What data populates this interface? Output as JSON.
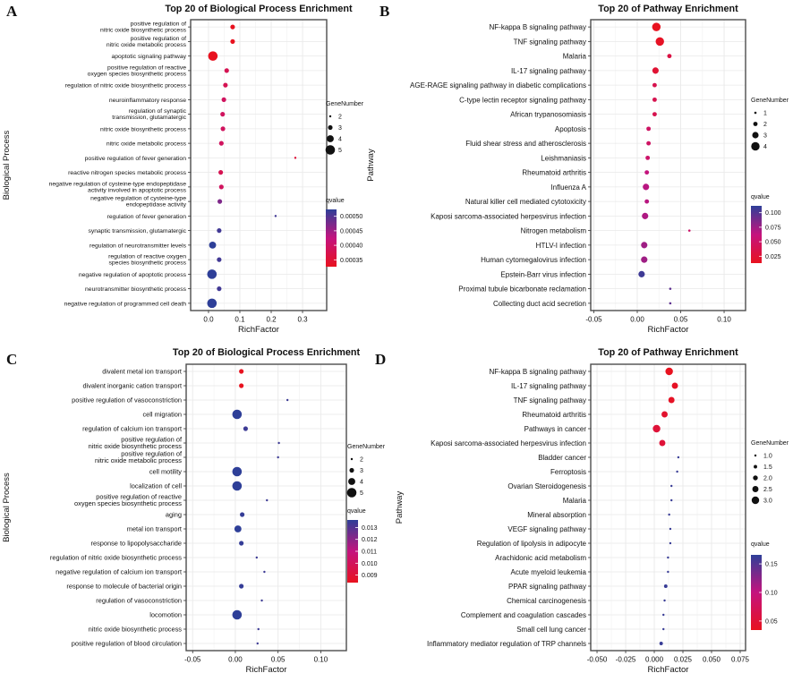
{
  "figure_colors": {
    "gradient_low_q": "#e8121f",
    "gradient_mid_q": "#c4137e",
    "gradient_high_q": "#2e3f98",
    "legend_dot": "#111111",
    "plot_border": "#4d4d4d",
    "grid_major": "#e9e9e9",
    "grid_minor": "#f4f4f4",
    "text": "#111111",
    "background": "#ffffff"
  },
  "chart_data": [
    {
      "type": "scatter",
      "panel_letter": "A",
      "title": "Top 20 of Biological Process Enrichment",
      "xlabel": "RichFactor",
      "ylabel": "Biological Process",
      "xlim": [
        -0.057,
        0.377
      ],
      "xtick_values": [
        0.0,
        0.1,
        0.2,
        0.3
      ],
      "xtick_labels": [
        "0.0",
        "0.1",
        "0.2",
        "0.3"
      ],
      "grid": true,
      "legend": {
        "size_title": "GeneNumber",
        "sizes": [
          2,
          3,
          4,
          5
        ],
        "size_labels": [
          "2",
          "3",
          "4",
          "5"
        ],
        "color_title": "qvalue",
        "color_ticks": [
          "0.00050",
          "0.00045",
          "0.00040",
          "0.00035"
        ],
        "color_domain": [
          0.00035,
          0.0005
        ]
      },
      "points": [
        {
          "label": [
            "positive regulation of",
            "nitric oxide biosynthetic process"
          ],
          "rich_factor": 0.077,
          "gene_number": 3,
          "qvalue": 0.00035
        },
        {
          "label": [
            "positive regulation of",
            "nitric oxide metabolic process"
          ],
          "rich_factor": 0.077,
          "gene_number": 3,
          "qvalue": 0.00035
        },
        {
          "label": [
            "apoptotic signaling pathway"
          ],
          "rich_factor": 0.014,
          "gene_number": 5,
          "qvalue": 0.00035
        },
        {
          "label": [
            "positive regulation of reactive",
            "oxygen species biosynthetic process"
          ],
          "rich_factor": 0.058,
          "gene_number": 3,
          "qvalue": 0.00039
        },
        {
          "label": [
            "regulation of nitric oxide biosynthetic process"
          ],
          "rich_factor": 0.054,
          "gene_number": 3,
          "qvalue": 0.00039
        },
        {
          "label": [
            "neuroinflammatory response"
          ],
          "rich_factor": 0.049,
          "gene_number": 3,
          "qvalue": 0.0004
        },
        {
          "label": [
            "regulation of synaptic",
            "transmission, glutamatergic"
          ],
          "rich_factor": 0.045,
          "gene_number": 3,
          "qvalue": 0.0004
        },
        {
          "label": [
            "nitric oxide biosynthetic process"
          ],
          "rich_factor": 0.046,
          "gene_number": 3,
          "qvalue": 0.0004
        },
        {
          "label": [
            "nitric oxide metabolic process"
          ],
          "rich_factor": 0.041,
          "gene_number": 3,
          "qvalue": 0.0004
        },
        {
          "label": [
            "positive regulation of fever generation"
          ],
          "rich_factor": 0.277,
          "gene_number": 2,
          "qvalue": 0.00037
        },
        {
          "label": [
            "reactive nitrogen species metabolic process"
          ],
          "rich_factor": 0.039,
          "gene_number": 3,
          "qvalue": 0.00039
        },
        {
          "label": [
            "negative regulation of cysteine-type endopeptidase",
            "activity involved in apoptotic process"
          ],
          "rich_factor": 0.041,
          "gene_number": 3,
          "qvalue": 0.0004
        },
        {
          "label": [
            "negative regulation of cysteine-type",
            "endopeptidase activity"
          ],
          "rich_factor": 0.036,
          "gene_number": 3,
          "qvalue": 0.00046
        },
        {
          "label": [
            "regulation of fever generation"
          ],
          "rich_factor": 0.214,
          "gene_number": 2,
          "qvalue": 0.00049
        },
        {
          "label": [
            "synaptic transmission, glutamatergic"
          ],
          "rich_factor": 0.034,
          "gene_number": 3,
          "qvalue": 0.00049
        },
        {
          "label": [
            "regulation of neurotransmitter levels"
          ],
          "rich_factor": 0.013,
          "gene_number": 4,
          "qvalue": 0.0005
        },
        {
          "label": [
            "regulation of reactive oxygen",
            "species biosynthetic process"
          ],
          "rich_factor": 0.034,
          "gene_number": 3,
          "qvalue": 0.00049
        },
        {
          "label": [
            "negative regulation of apoptotic process"
          ],
          "rich_factor": 0.011,
          "gene_number": 5,
          "qvalue": 0.0005
        },
        {
          "label": [
            "neurotransmitter biosynthetic process"
          ],
          "rich_factor": 0.034,
          "gene_number": 3,
          "qvalue": 0.00049
        },
        {
          "label": [
            "negative regulation of programmed cell death"
          ],
          "rich_factor": 0.011,
          "gene_number": 5,
          "qvalue": 0.0005
        }
      ]
    },
    {
      "type": "scatter",
      "panel_letter": "B",
      "title": "Top 20 of Pathway Enrichment",
      "xlabel": "RichFactor",
      "ylabel": "Pathway",
      "xlim": [
        -0.0536,
        0.1247
      ],
      "xtick_values": [
        -0.05,
        0.0,
        0.05,
        0.1
      ],
      "xtick_labels": [
        "-0.05",
        "0.00",
        "0.05",
        "0.10"
      ],
      "grid": true,
      "legend": {
        "size_title": "GeneNumber",
        "sizes": [
          1,
          2,
          3,
          4
        ],
        "size_labels": [
          "1",
          "2",
          "3",
          "4"
        ],
        "color_title": "qvalue",
        "color_ticks": [
          "0.100",
          "0.075",
          "0.050",
          "0.025"
        ],
        "color_domain": [
          0.012,
          0.105
        ]
      },
      "points": [
        {
          "label": [
            "NF-kappa B signaling pathway"
          ],
          "rich_factor": 0.022,
          "gene_number": 4,
          "qvalue": 0.012
        },
        {
          "label": [
            "TNF signaling pathway"
          ],
          "rich_factor": 0.026,
          "gene_number": 4,
          "qvalue": 0.015
        },
        {
          "label": [
            "Malaria"
          ],
          "rich_factor": 0.037,
          "gene_number": 2,
          "qvalue": 0.03
        },
        {
          "label": [
            "IL-17 signaling pathway"
          ],
          "rich_factor": 0.021,
          "gene_number": 3,
          "qvalue": 0.022
        },
        {
          "label": [
            "AGE-RAGE signaling pathway in diabetic complications"
          ],
          "rich_factor": 0.02,
          "gene_number": 2,
          "qvalue": 0.035
        },
        {
          "label": [
            "C-type lectin receptor signaling pathway"
          ],
          "rich_factor": 0.02,
          "gene_number": 2,
          "qvalue": 0.035
        },
        {
          "label": [
            "African trypanosomiasis"
          ],
          "rich_factor": 0.02,
          "gene_number": 2,
          "qvalue": 0.035
        },
        {
          "label": [
            "Apoptosis"
          ],
          "rich_factor": 0.013,
          "gene_number": 2,
          "qvalue": 0.045
        },
        {
          "label": [
            "Fluid shear stress and atherosclerosis"
          ],
          "rich_factor": 0.013,
          "gene_number": 2,
          "qvalue": 0.045
        },
        {
          "label": [
            "Leishmaniasis"
          ],
          "rich_factor": 0.012,
          "gene_number": 2,
          "qvalue": 0.048
        },
        {
          "label": [
            "Rheumatoid arthritis"
          ],
          "rich_factor": 0.011,
          "gene_number": 2,
          "qvalue": 0.058
        },
        {
          "label": [
            "Influenza A"
          ],
          "rich_factor": 0.01,
          "gene_number": 3,
          "qvalue": 0.062
        },
        {
          "label": [
            "Natural killer cell mediated cytotoxicity"
          ],
          "rich_factor": 0.011,
          "gene_number": 2,
          "qvalue": 0.062
        },
        {
          "label": [
            "Kaposi sarcoma-associated herpesvirus infection"
          ],
          "rich_factor": 0.009,
          "gene_number": 3,
          "qvalue": 0.065
        },
        {
          "label": [
            "Nitrogen metabolism"
          ],
          "rich_factor": 0.06,
          "gene_number": 1,
          "qvalue": 0.048
        },
        {
          "label": [
            "HTLV-I infection"
          ],
          "rich_factor": 0.008,
          "gene_number": 3,
          "qvalue": 0.07
        },
        {
          "label": [
            "Human cytomegalovirus infection"
          ],
          "rich_factor": 0.008,
          "gene_number": 3,
          "qvalue": 0.07
        },
        {
          "label": [
            "Epstein-Barr virus infection"
          ],
          "rich_factor": 0.005,
          "gene_number": 3,
          "qvalue": 0.1
        },
        {
          "label": [
            "Proximal tubule bicarbonate reclamation"
          ],
          "rich_factor": 0.038,
          "gene_number": 1,
          "qvalue": 0.09
        },
        {
          "label": [
            "Collecting duct acid secretion"
          ],
          "rich_factor": 0.038,
          "gene_number": 1,
          "qvalue": 0.09
        }
      ]
    },
    {
      "type": "scatter",
      "panel_letter": "C",
      "title": "Top 20 of Biological Process Enrichment",
      "xlabel": "RichFactor",
      "ylabel": "Biological Process",
      "xlim": [
        -0.0576,
        0.13
      ],
      "xtick_values": [
        -0.05,
        0.0,
        0.05,
        0.1
      ],
      "xtick_labels": [
        "-0.05",
        "0.00",
        "0.05",
        "0.10"
      ],
      "grid": true,
      "legend": {
        "size_title": "GeneNumber",
        "sizes": [
          2,
          3,
          4,
          5
        ],
        "size_labels": [
          "2",
          "3",
          "4",
          "5"
        ],
        "color_title": "qvalue",
        "color_ticks": [
          "0.013",
          "0.012",
          "0.011",
          "0.010",
          "0.009"
        ],
        "color_domain": [
          0.009,
          0.013
        ]
      },
      "points": [
        {
          "label": [
            "divalent metal ion transport"
          ],
          "rich_factor": 0.007,
          "gene_number": 3,
          "qvalue": 0.009
        },
        {
          "label": [
            "divalent inorganic cation transport"
          ],
          "rich_factor": 0.007,
          "gene_number": 3,
          "qvalue": 0.009
        },
        {
          "label": [
            "positive regulation of vasoconstriction"
          ],
          "rich_factor": 0.061,
          "gene_number": 2,
          "qvalue": 0.0128
        },
        {
          "label": [
            "cell migration"
          ],
          "rich_factor": 0.002,
          "gene_number": 5,
          "qvalue": 0.013
        },
        {
          "label": [
            "regulation of calcium ion transport"
          ],
          "rich_factor": 0.012,
          "gene_number": 3,
          "qvalue": 0.0128
        },
        {
          "label": [
            "positive regulation of",
            "nitric oxide biosynthetic process"
          ],
          "rich_factor": 0.051,
          "gene_number": 2,
          "qvalue": 0.0128
        },
        {
          "label": [
            "positive regulation of",
            "nitric oxide metabolic process"
          ],
          "rich_factor": 0.05,
          "gene_number": 2,
          "qvalue": 0.0128
        },
        {
          "label": [
            "cell motility"
          ],
          "rich_factor": 0.002,
          "gene_number": 5,
          "qvalue": 0.013
        },
        {
          "label": [
            "localization of cell"
          ],
          "rich_factor": 0.002,
          "gene_number": 5,
          "qvalue": 0.013
        },
        {
          "label": [
            "positive regulation of reactive",
            "oxygen species biosynthetic process"
          ],
          "rich_factor": 0.037,
          "gene_number": 2,
          "qvalue": 0.0128
        },
        {
          "label": [
            "aging"
          ],
          "rich_factor": 0.008,
          "gene_number": 3,
          "qvalue": 0.0129
        },
        {
          "label": [
            "metal ion transport"
          ],
          "rich_factor": 0.003,
          "gene_number": 4,
          "qvalue": 0.013
        },
        {
          "label": [
            "response to lipopolysaccharide"
          ],
          "rich_factor": 0.007,
          "gene_number": 3,
          "qvalue": 0.0129
        },
        {
          "label": [
            "regulation of nitric oxide biosynthetic process"
          ],
          "rich_factor": 0.025,
          "gene_number": 2,
          "qvalue": 0.0128
        },
        {
          "label": [
            "negative regulation of calcium ion transport"
          ],
          "rich_factor": 0.034,
          "gene_number": 2,
          "qvalue": 0.0128
        },
        {
          "label": [
            "response to molecule of bacterial origin"
          ],
          "rich_factor": 0.007,
          "gene_number": 3,
          "qvalue": 0.0129
        },
        {
          "label": [
            "regulation of vasoconstriction"
          ],
          "rich_factor": 0.031,
          "gene_number": 2,
          "qvalue": 0.0128
        },
        {
          "label": [
            "locomotion"
          ],
          "rich_factor": 0.002,
          "gene_number": 5,
          "qvalue": 0.013
        },
        {
          "label": [
            "nitric oxide biosynthetic process"
          ],
          "rich_factor": 0.027,
          "gene_number": 2,
          "qvalue": 0.0128
        },
        {
          "label": [
            "positive regulation of blood circulation"
          ],
          "rich_factor": 0.026,
          "gene_number": 2,
          "qvalue": 0.0128
        }
      ]
    },
    {
      "type": "scatter",
      "panel_letter": "D",
      "title": "Top 20 of Pathway Enrichment",
      "xlabel": "RichFactor",
      "ylabel": "Pathway",
      "xlim": [
        -0.0555,
        0.0797
      ],
      "xtick_values": [
        -0.05,
        -0.025,
        0.0,
        0.025,
        0.05,
        0.075
      ],
      "xtick_labels": [
        "-0.050",
        "-0.025",
        "0.000",
        "0.025",
        "0.050",
        "0.075"
      ],
      "grid": true,
      "legend": {
        "size_title": "GeneNumber",
        "sizes": [
          1.0,
          1.5,
          2.0,
          2.5,
          3.0
        ],
        "size_labels": [
          "1.0",
          "1.5",
          "2.0",
          "2.5",
          "3.0"
        ],
        "color_title": "qvalue",
        "color_ticks": [
          "0.15",
          "0.10",
          "0.05"
        ],
        "color_domain": [
          0.03,
          0.185
        ]
      },
      "points": [
        {
          "label": [
            "NF-kappa B signaling pathway"
          ],
          "rich_factor": 0.013,
          "gene_number": 3.0,
          "qvalue": 0.03
        },
        {
          "label": [
            "IL-17 signaling pathway"
          ],
          "rich_factor": 0.018,
          "gene_number": 2.5,
          "qvalue": 0.035
        },
        {
          "label": [
            "TNF signaling pathway"
          ],
          "rich_factor": 0.015,
          "gene_number": 2.5,
          "qvalue": 0.035
        },
        {
          "label": [
            "Rheumatoid arthritis"
          ],
          "rich_factor": 0.009,
          "gene_number": 2.5,
          "qvalue": 0.042
        },
        {
          "label": [
            "Pathways in cancer"
          ],
          "rich_factor": 0.002,
          "gene_number": 3.0,
          "qvalue": 0.05
        },
        {
          "label": [
            "Kaposi sarcoma-associated herpesvirus infection"
          ],
          "rich_factor": 0.007,
          "gene_number": 2.5,
          "qvalue": 0.05
        },
        {
          "label": [
            "Bladder cancer"
          ],
          "rich_factor": 0.021,
          "gene_number": 1.0,
          "qvalue": 0.18
        },
        {
          "label": [
            "Ferroptosis"
          ],
          "rich_factor": 0.02,
          "gene_number": 1.0,
          "qvalue": 0.18
        },
        {
          "label": [
            "Ovarian Steroidogenesis"
          ],
          "rich_factor": 0.015,
          "gene_number": 1.0,
          "qvalue": 0.18
        },
        {
          "label": [
            "Malaria"
          ],
          "rich_factor": 0.015,
          "gene_number": 1.0,
          "qvalue": 0.18
        },
        {
          "label": [
            "Mineral absorption"
          ],
          "rich_factor": 0.013,
          "gene_number": 1.0,
          "qvalue": 0.18
        },
        {
          "label": [
            "VEGF signaling pathway"
          ],
          "rich_factor": 0.014,
          "gene_number": 1.0,
          "qvalue": 0.18
        },
        {
          "label": [
            "Regulation of lipolysis in adipocyte"
          ],
          "rich_factor": 0.014,
          "gene_number": 1.0,
          "qvalue": 0.18
        },
        {
          "label": [
            "Arachidonic acid metabolism"
          ],
          "rich_factor": 0.012,
          "gene_number": 1.0,
          "qvalue": 0.18
        },
        {
          "label": [
            "Acute myeloid leukemia"
          ],
          "rich_factor": 0.012,
          "gene_number": 1.0,
          "qvalue": 0.18
        },
        {
          "label": [
            "PPAR signaling pathway"
          ],
          "rich_factor": 0.01,
          "gene_number": 1.5,
          "qvalue": 0.18
        },
        {
          "label": [
            "Chemical carcinogenesis"
          ],
          "rich_factor": 0.009,
          "gene_number": 1.0,
          "qvalue": 0.18
        },
        {
          "label": [
            "Complement and coagulation cascades"
          ],
          "rich_factor": 0.008,
          "gene_number": 1.0,
          "qvalue": 0.18
        },
        {
          "label": [
            "Small cell lung cancer"
          ],
          "rich_factor": 0.008,
          "gene_number": 1.0,
          "qvalue": 0.18
        },
        {
          "label": [
            "Inflammatory mediator regulation of TRP channels"
          ],
          "rich_factor": 0.006,
          "gene_number": 1.5,
          "qvalue": 0.18
        }
      ]
    }
  ]
}
